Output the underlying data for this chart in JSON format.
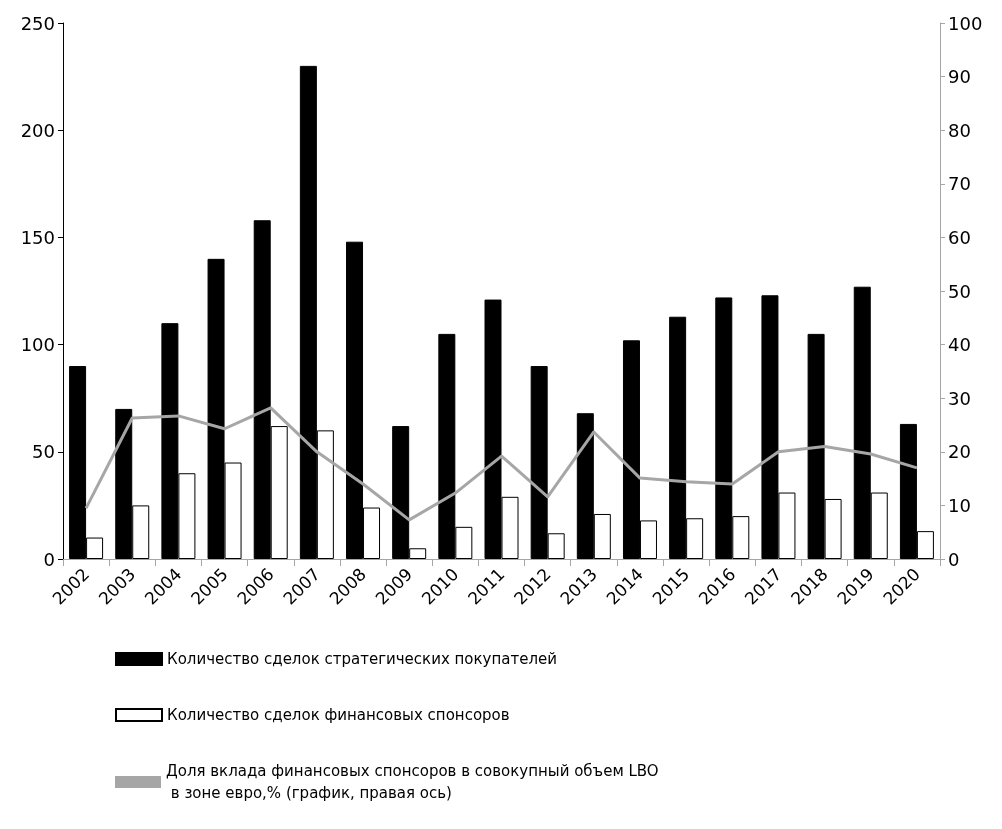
{
  "chart_data": {
    "type": "bar",
    "categories": [
      "2002",
      "2003",
      "2004",
      "2005",
      "2006",
      "2007",
      "2008",
      "2009",
      "2010",
      "2011",
      "2012",
      "2013",
      "2014",
      "2015",
      "2016",
      "2017",
      "2018",
      "2019",
      "2020"
    ],
    "series": [
      {
        "name": "Количество сделок стратегических покупателей",
        "color": "#000000",
        "values": [
          90,
          70,
          110,
          140,
          158,
          230,
          148,
          62,
          105,
          121,
          90,
          68,
          102,
          113,
          122,
          123,
          105,
          127,
          63
        ]
      },
      {
        "name": "Количество сделок финансовых спонсоров",
        "color": "#ffffff",
        "values": [
          10,
          25,
          40,
          45,
          62,
          60,
          24,
          5,
          15,
          29,
          12,
          21,
          18,
          19,
          20,
          31,
          28,
          31,
          13
        ]
      },
      {
        "name": "Доля вклада финансовых спонсоров в совокупный объем LBO в зоне евро,% (график, правая ось)",
        "type": "line",
        "axis": "y2",
        "color": "#a6a6a6",
        "values": [
          9.5,
          26.3,
          26.7,
          24.3,
          28.2,
          20,
          14,
          7.3,
          12.3,
          19.2,
          11.6,
          23.7,
          15.1,
          14.4,
          14,
          20,
          21,
          19.6,
          17
        ]
      }
    ],
    "ylim": [
      0,
      250
    ],
    "yticks": [
      0,
      50,
      100,
      150,
      200,
      250
    ],
    "y2lim": [
      0,
      100
    ],
    "y2ticks": [
      0,
      10,
      20,
      30,
      40,
      50,
      60,
      70,
      80,
      90,
      100
    ],
    "grid": false,
    "legend": "bottom",
    "marker": "none",
    "line_style": "solid"
  }
}
